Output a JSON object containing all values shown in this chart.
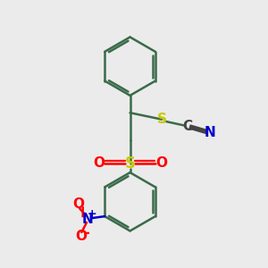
{
  "background_color": "#ebebeb",
  "bond_color": "#3a6b4a",
  "S_color": "#c8c800",
  "O_color": "#ff0000",
  "N_color": "#0000cc",
  "C_color": "#444444",
  "bond_width": 1.8,
  "fig_size": [
    3.0,
    3.0
  ],
  "dpi": 100,
  "xlim": [
    0,
    10
  ],
  "ylim": [
    0,
    10
  ]
}
